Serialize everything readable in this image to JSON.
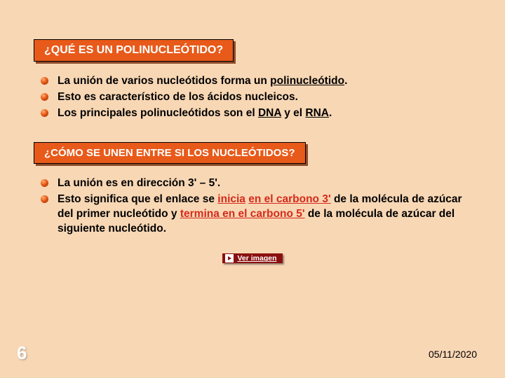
{
  "colors": {
    "background": "#f8d7b5",
    "heading_bg": "#e85a1a",
    "heading_text": "#ffffff",
    "heading_shadow": "#8b4a2a",
    "body_text": "#000000",
    "emphasis_red": "#d62a1a",
    "button_bg": "#8a1010",
    "page_num": "#ffffff"
  },
  "heading1": "¿QUÉ ES UN POLINUCLEÓTIDO?",
  "list1": {
    "item1": {
      "pre": "La unión de varios nucleótidos forma un ",
      "u": "polinucleótido",
      "post": "."
    },
    "item2": "Esto es característico de los ácidos nucleicos.",
    "item3": {
      "pre": "Los principales polinucleótidos son el ",
      "u1": "DNA",
      "mid": " y el ",
      "u2": "RNA",
      "post": "."
    }
  },
  "heading2": "¿CÓMO SE UNEN ENTRE SI LOS NUCLEÓTIDOS?",
  "list2": {
    "item1": "La unión es en dirección 3' – 5'.",
    "item2": {
      "a": "Esto significa que el enlace se ",
      "b": "inicia",
      "c": " ",
      "d": "en el carbono 3'",
      "e": " de la molécula de azúcar del primer nucleótido y ",
      "f": "termina en el carbono 5'",
      "g": " de la molécula de azúcar del siguiente nucleótido."
    }
  },
  "button_label": "Ver imagen",
  "page_number": "6",
  "date": "05/11/2020"
}
